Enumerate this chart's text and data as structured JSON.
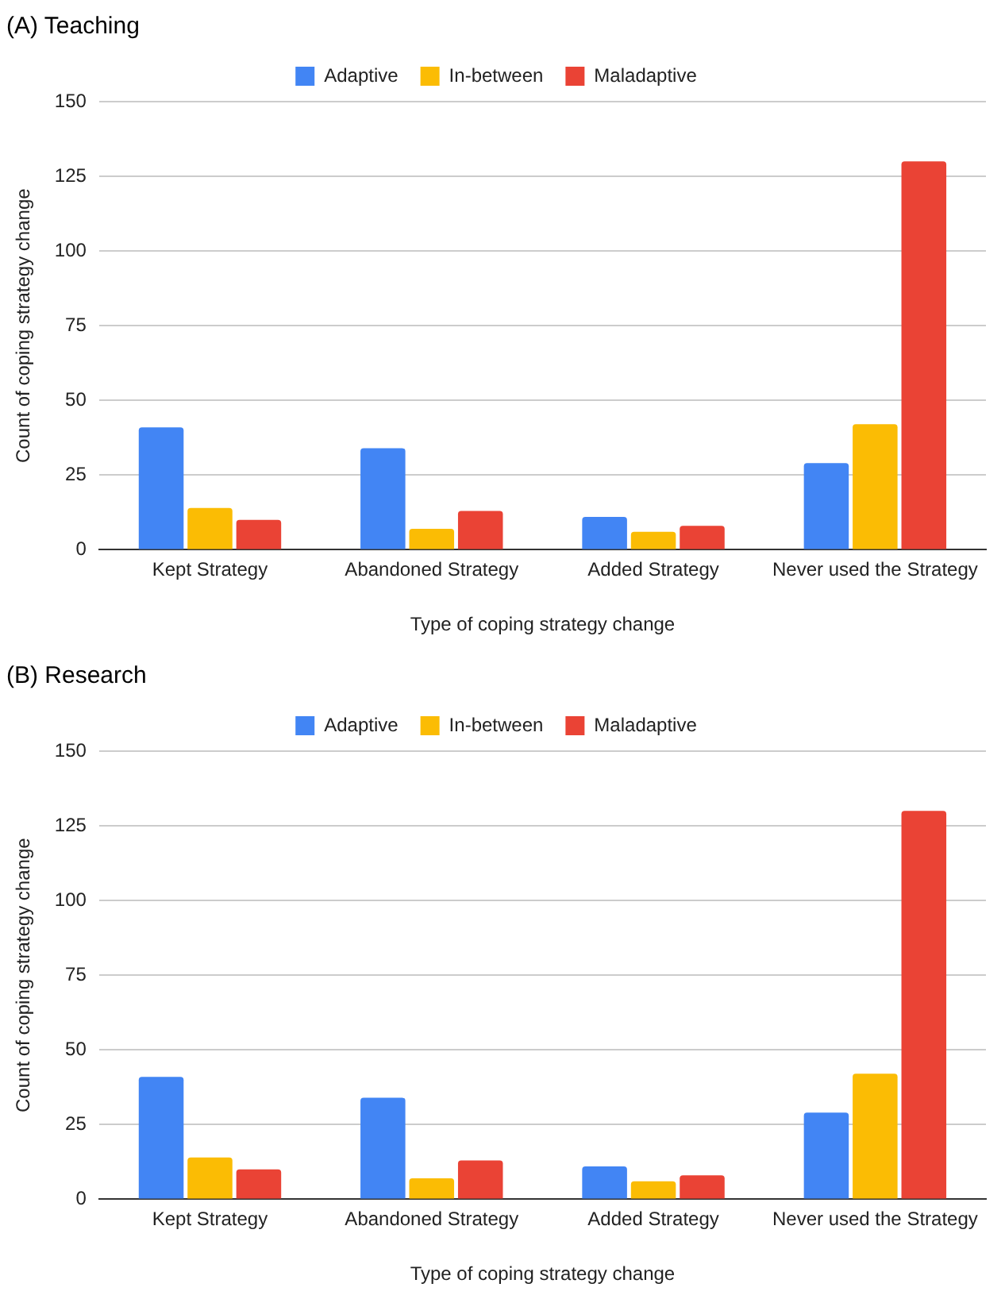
{
  "chart_data": [
    {
      "type": "bar",
      "title": "(A) Teaching",
      "xlabel": "Type of coping strategy change",
      "ylabel": "Count of coping strategy change",
      "categories": [
        "Kept Strategy",
        "Abandoned Strategy",
        "Added Strategy",
        "Never used the Strategy"
      ],
      "series": [
        {
          "name": "Adaptive",
          "color": "#4285f4",
          "values": [
            41,
            34,
            11,
            29
          ]
        },
        {
          "name": "In-between",
          "color": "#fbbc04",
          "values": [
            14,
            7,
            6,
            42
          ]
        },
        {
          "name": "Maladaptive",
          "color": "#ea4335",
          "values": [
            10,
            13,
            8,
            130
          ]
        }
      ],
      "ylim": [
        0,
        150
      ],
      "yticks": [
        0,
        25,
        50,
        75,
        100,
        125,
        150
      ],
      "grid": "y",
      "legend": "top"
    },
    {
      "type": "bar",
      "title": "(B) Research",
      "xlabel": "Type of coping strategy change",
      "ylabel": "Count of coping strategy change",
      "categories": [
        "Kept Strategy",
        "Abandoned Strategy",
        "Added Strategy",
        "Never used the Strategy"
      ],
      "series": [
        {
          "name": "Adaptive",
          "color": "#4285f4",
          "values": [
            41,
            34,
            11,
            29
          ]
        },
        {
          "name": "In-between",
          "color": "#fbbc04",
          "values": [
            14,
            7,
            6,
            42
          ]
        },
        {
          "name": "Maladaptive",
          "color": "#ea4335",
          "values": [
            10,
            13,
            8,
            130
          ]
        }
      ],
      "ylim": [
        0,
        150
      ],
      "yticks": [
        0,
        25,
        50,
        75,
        100,
        125,
        150
      ],
      "grid": "y",
      "legend": "top"
    }
  ]
}
